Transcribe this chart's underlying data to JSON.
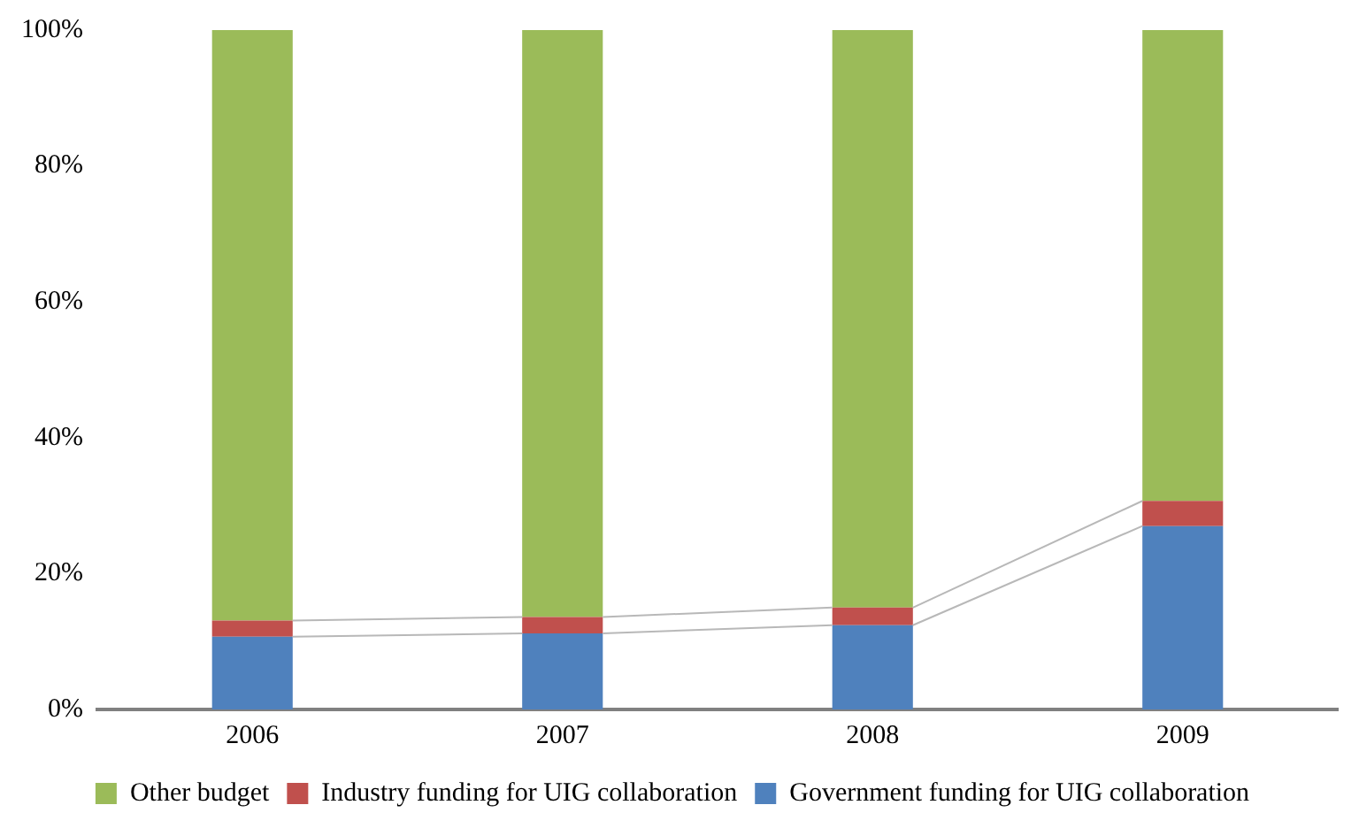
{
  "chart_data": {
    "type": "bar",
    "stacked": true,
    "categories": [
      "2006",
      "2007",
      "2008",
      "2009"
    ],
    "series": [
      {
        "name": "Government funding for UIG collaboration",
        "color": "#4f81bd",
        "values": [
          10.7,
          11.2,
          12.4,
          27.0
        ]
      },
      {
        "name": "Industry funding for UIG collaboration",
        "color": "#c0504d",
        "values": [
          2.4,
          2.4,
          2.6,
          3.7
        ]
      },
      {
        "name": "Other budget",
        "color": "#9bbb59",
        "values": [
          86.9,
          86.4,
          85.0,
          69.3
        ]
      }
    ],
    "ylim": [
      0,
      100
    ],
    "yticks": [
      {
        "value": 0,
        "label": "0%"
      },
      {
        "value": 20,
        "label": "20%"
      },
      {
        "value": 40,
        "label": "40%"
      },
      {
        "value": 60,
        "label": "60%"
      },
      {
        "value": 80,
        "label": "80%"
      },
      {
        "value": 100,
        "label": "100%"
      }
    ],
    "grid": false,
    "legend": "bottom"
  }
}
